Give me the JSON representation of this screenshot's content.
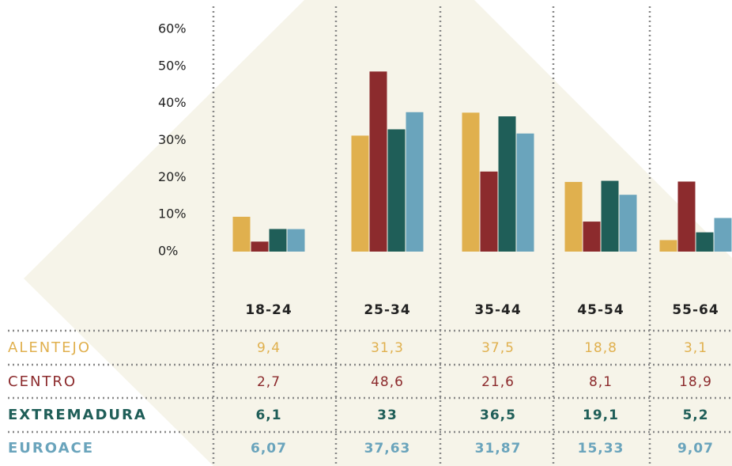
{
  "chart_data": {
    "type": "bar",
    "categories": [
      "18-24",
      "25-34",
      "35-44",
      "45-54",
      "55-64"
    ],
    "series": [
      {
        "name": "ALENTEJO",
        "color": "#e0b04e",
        "values": [
          9.4,
          31.3,
          37.5,
          18.8,
          3.1
        ],
        "value_labels": [
          "9,4",
          "31,3",
          "37,5",
          "18,8",
          "3,1"
        ]
      },
      {
        "name": "CENTRO",
        "color": "#8c2b2d",
        "values": [
          2.7,
          48.6,
          21.6,
          8.1,
          18.9
        ],
        "value_labels": [
          "2,7",
          "48,6",
          "21,6",
          "8,1",
          "18,9"
        ]
      },
      {
        "name": "EXTREMADURA",
        "color": "#1f5e58",
        "values": [
          6.1,
          33,
          36.5,
          19.1,
          5.2
        ],
        "value_labels": [
          "6,1",
          "33",
          "36,5",
          "19,1",
          "5,2"
        ]
      },
      {
        "name": "EUROACE",
        "color": "#6aa4bc",
        "values": [
          6.07,
          37.63,
          31.87,
          15.33,
          9.07
        ],
        "value_labels": [
          "6,07",
          "37,63",
          "31,87",
          "15,33",
          "9,07"
        ]
      }
    ],
    "ylim": [
      0,
      60
    ],
    "yticks": [
      {
        "value": 0,
        "label": "0%"
      },
      {
        "value": 10,
        "label": "10%"
      },
      {
        "value": 20,
        "label": "20%"
      },
      {
        "value": 30,
        "label": "30%"
      },
      {
        "value": 40,
        "label": "40%"
      },
      {
        "value": 50,
        "label": "50%"
      },
      {
        "value": 60,
        "label": "60%"
      }
    ]
  }
}
